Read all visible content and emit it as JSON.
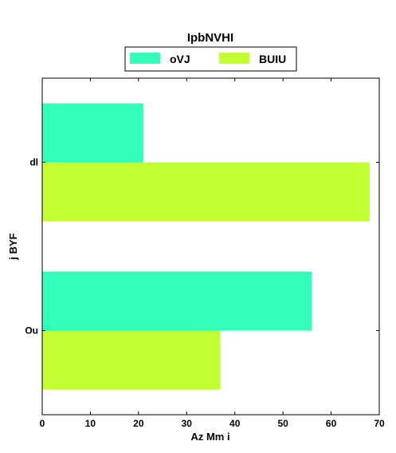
{
  "chart_data": {
    "type": "bar",
    "orientation": "horizontal",
    "title": "IpbNVHI",
    "xlabel": "Az Mm  i",
    "ylabel": "j BYF",
    "categories": [
      "Ou",
      "dl"
    ],
    "series": [
      {
        "name": "oVJ",
        "color": "#33ffbb",
        "values": [
          56,
          21
        ]
      },
      {
        "name": "BUIU",
        "color": "#c2ff33",
        "values": [
          37,
          68
        ]
      }
    ],
    "xlim": [
      0,
      70
    ],
    "xticks": [
      "0",
      "10",
      "20",
      "30",
      "40",
      "50",
      "60",
      "70"
    ],
    "grid": false,
    "legend_position": "top-center"
  }
}
